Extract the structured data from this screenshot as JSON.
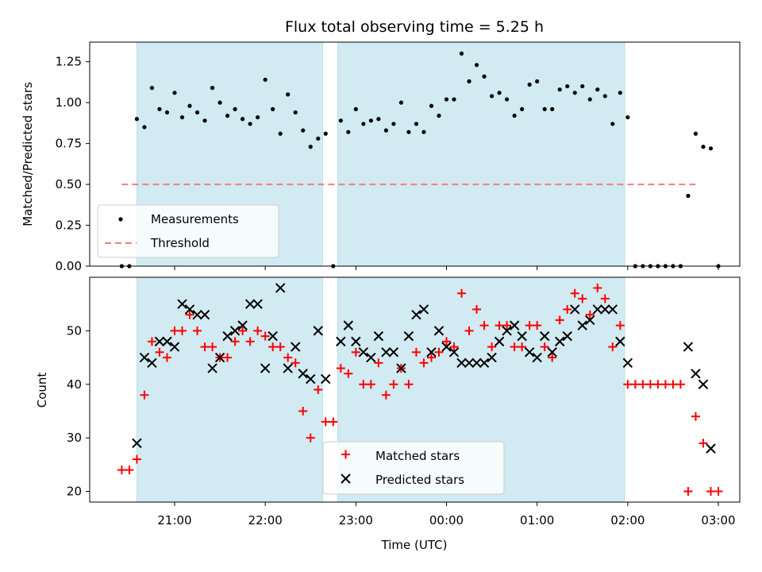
{
  "chart_data": [
    {
      "type": "scatter",
      "title": "Flux total observing time = 5.25 h",
      "xlabel": "",
      "ylabel": "Matched/Predicted stars",
      "ylim": [
        0,
        1.37
      ],
      "y_ticks": [
        "0.00",
        "0.25",
        "0.50",
        "0.75",
        "1.00",
        "1.25"
      ],
      "legend_position": "lower-left",
      "threshold": {
        "name": "Threshold",
        "value": 0.5,
        "x_range": [
          "20:25",
          "02:45"
        ],
        "color": "#f08080"
      },
      "series": [
        {
          "name": "Measurements",
          "color": "#000000",
          "points": [
            [
              "20:25",
              0.0
            ],
            [
              "20:30",
              0.0
            ],
            [
              "20:35",
              0.9
            ],
            [
              "20:40",
              0.85
            ],
            [
              "20:45",
              1.09
            ],
            [
              "20:50",
              0.96
            ],
            [
              "20:55",
              0.94
            ],
            [
              "21:00",
              1.06
            ],
            [
              "21:05",
              0.91
            ],
            [
              "21:10",
              0.98
            ],
            [
              "21:15",
              0.94
            ],
            [
              "21:20",
              0.89
            ],
            [
              "21:25",
              1.09
            ],
            [
              "21:30",
              1.0
            ],
            [
              "21:35",
              0.92
            ],
            [
              "21:40",
              0.96
            ],
            [
              "21:45",
              0.9
            ],
            [
              "21:50",
              0.87
            ],
            [
              "21:55",
              0.91
            ],
            [
              "22:00",
              1.14
            ],
            [
              "22:05",
              0.96
            ],
            [
              "22:10",
              0.81
            ],
            [
              "22:15",
              1.05
            ],
            [
              "22:20",
              0.94
            ],
            [
              "22:25",
              0.83
            ],
            [
              "22:30",
              0.73
            ],
            [
              "22:35",
              0.78
            ],
            [
              "22:40",
              0.81
            ],
            [
              "22:45",
              0.0
            ],
            [
              "22:50",
              0.89
            ],
            [
              "22:55",
              0.82
            ],
            [
              "23:00",
              0.96
            ],
            [
              "23:05",
              0.87
            ],
            [
              "23:10",
              0.89
            ],
            [
              "23:15",
              0.9
            ],
            [
              "23:20",
              0.83
            ],
            [
              "23:25",
              0.87
            ],
            [
              "23:30",
              1.0
            ],
            [
              "23:35",
              0.82
            ],
            [
              "23:40",
              0.87
            ],
            [
              "23:45",
              0.82
            ],
            [
              "23:50",
              0.98
            ],
            [
              "23:55",
              0.92
            ],
            [
              "00:00",
              1.02
            ],
            [
              "00:05",
              1.02
            ],
            [
              "00:10",
              1.3
            ],
            [
              "00:15",
              1.13
            ],
            [
              "00:20",
              1.23
            ],
            [
              "00:25",
              1.16
            ],
            [
              "00:30",
              1.04
            ],
            [
              "00:35",
              1.06
            ],
            [
              "00:40",
              1.02
            ],
            [
              "00:45",
              0.92
            ],
            [
              "00:50",
              0.96
            ],
            [
              "00:55",
              1.11
            ],
            [
              "01:00",
              1.13
            ],
            [
              "01:05",
              0.96
            ],
            [
              "01:10",
              0.96
            ],
            [
              "01:15",
              1.08
            ],
            [
              "01:20",
              1.1
            ],
            [
              "01:25",
              1.06
            ],
            [
              "01:30",
              1.1
            ],
            [
              "01:35",
              1.02
            ],
            [
              "01:40",
              1.08
            ],
            [
              "01:45",
              1.04
            ],
            [
              "01:50",
              0.87
            ],
            [
              "01:55",
              1.06
            ],
            [
              "02:00",
              0.91
            ],
            [
              "02:05",
              0.0
            ],
            [
              "02:10",
              0.0
            ],
            [
              "02:15",
              0.0
            ],
            [
              "02:20",
              0.0
            ],
            [
              "02:25",
              0.0
            ],
            [
              "02:30",
              0.0
            ],
            [
              "02:35",
              0.0
            ],
            [
              "02:40",
              0.43
            ],
            [
              "02:45",
              0.81
            ],
            [
              "02:50",
              0.73
            ],
            [
              "02:55",
              0.72
            ],
            [
              "03:00",
              0.0
            ]
          ]
        }
      ]
    },
    {
      "type": "scatter",
      "title": "",
      "xlabel": "Time (UTC)",
      "ylabel": "Count",
      "ylim": [
        18,
        60
      ],
      "y_ticks": [
        "20",
        "30",
        "40",
        "50"
      ],
      "x_ticks": [
        "21:00",
        "22:00",
        "23:00",
        "00:00",
        "01:00",
        "02:00",
        "03:00"
      ],
      "legend_position": "lower-center",
      "series": [
        {
          "name": "Matched stars",
          "marker": "+",
          "color": "#ff0000",
          "points": [
            [
              "20:25",
              24
            ],
            [
              "20:30",
              24
            ],
            [
              "20:35",
              26
            ],
            [
              "20:40",
              38
            ],
            [
              "20:45",
              48
            ],
            [
              "20:50",
              46
            ],
            [
              "20:55",
              45
            ],
            [
              "21:00",
              50
            ],
            [
              "21:05",
              50
            ],
            [
              "21:10",
              53
            ],
            [
              "21:15",
              50
            ],
            [
              "21:20",
              47
            ],
            [
              "21:25",
              47
            ],
            [
              "21:30",
              45
            ],
            [
              "21:35",
              45
            ],
            [
              "21:40",
              48
            ],
            [
              "21:45",
              50
            ],
            [
              "21:50",
              48
            ],
            [
              "21:55",
              50
            ],
            [
              "22:00",
              49
            ],
            [
              "22:05",
              47
            ],
            [
              "22:10",
              47
            ],
            [
              "22:15",
              45
            ],
            [
              "22:20",
              44
            ],
            [
              "22:25",
              35
            ],
            [
              "22:30",
              30
            ],
            [
              "22:35",
              39
            ],
            [
              "22:40",
              33
            ],
            [
              "22:45",
              33
            ],
            [
              "22:50",
              43
            ],
            [
              "22:55",
              42
            ],
            [
              "23:00",
              46
            ],
            [
              "23:05",
              40
            ],
            [
              "23:10",
              40
            ],
            [
              "23:15",
              44
            ],
            [
              "23:20",
              38
            ],
            [
              "23:25",
              40
            ],
            [
              "23:30",
              43
            ],
            [
              "23:35",
              40
            ],
            [
              "23:40",
              46
            ],
            [
              "23:45",
              44
            ],
            [
              "23:50",
              45
            ],
            [
              "23:55",
              46
            ],
            [
              "00:00",
              48
            ],
            [
              "00:05",
              47
            ],
            [
              "00:10",
              57
            ],
            [
              "00:15",
              50
            ],
            [
              "00:20",
              54
            ],
            [
              "00:25",
              51
            ],
            [
              "00:30",
              47
            ],
            [
              "00:35",
              51
            ],
            [
              "00:40",
              51
            ],
            [
              "00:45",
              47
            ],
            [
              "00:50",
              47
            ],
            [
              "00:55",
              51
            ],
            [
              "01:00",
              51
            ],
            [
              "01:05",
              47
            ],
            [
              "01:10",
              45
            ],
            [
              "01:15",
              52
            ],
            [
              "01:20",
              54
            ],
            [
              "01:25",
              57
            ],
            [
              "01:30",
              56
            ],
            [
              "01:35",
              53
            ],
            [
              "01:40",
              58
            ],
            [
              "01:45",
              56
            ],
            [
              "01:50",
              47
            ],
            [
              "01:55",
              51
            ],
            [
              "02:00",
              40
            ],
            [
              "02:05",
              40
            ],
            [
              "02:10",
              40
            ],
            [
              "02:15",
              40
            ],
            [
              "02:20",
              40
            ],
            [
              "02:25",
              40
            ],
            [
              "02:30",
              40
            ],
            [
              "02:35",
              40
            ],
            [
              "02:40",
              20
            ],
            [
              "02:45",
              34
            ],
            [
              "02:50",
              29
            ],
            [
              "02:55",
              20
            ],
            [
              "03:00",
              20
            ]
          ]
        },
        {
          "name": "Predicted stars",
          "marker": "x",
          "color": "#000000",
          "points": [
            [
              "20:35",
              29
            ],
            [
              "20:40",
              45
            ],
            [
              "20:45",
              44
            ],
            [
              "20:50",
              48
            ],
            [
              "20:55",
              48
            ],
            [
              "21:00",
              47
            ],
            [
              "21:05",
              55
            ],
            [
              "21:10",
              54
            ],
            [
              "21:15",
              53
            ],
            [
              "21:20",
              53
            ],
            [
              "21:25",
              43
            ],
            [
              "21:30",
              45
            ],
            [
              "21:35",
              49
            ],
            [
              "21:40",
              50
            ],
            [
              "21:45",
              51
            ],
            [
              "21:50",
              55
            ],
            [
              "21:55",
              55
            ],
            [
              "22:00",
              43
            ],
            [
              "22:05",
              49
            ],
            [
              "22:10",
              58
            ],
            [
              "22:15",
              43
            ],
            [
              "22:20",
              47
            ],
            [
              "22:25",
              42
            ],
            [
              "22:30",
              41
            ],
            [
              "22:35",
              50
            ],
            [
              "22:40",
              41
            ],
            [
              "22:50",
              48
            ],
            [
              "22:55",
              51
            ],
            [
              "23:00",
              48
            ],
            [
              "23:05",
              46
            ],
            [
              "23:10",
              45
            ],
            [
              "23:15",
              49
            ],
            [
              "23:20",
              46
            ],
            [
              "23:25",
              46
            ],
            [
              "23:30",
              43
            ],
            [
              "23:35",
              49
            ],
            [
              "23:40",
              53
            ],
            [
              "23:45",
              54
            ],
            [
              "23:50",
              46
            ],
            [
              "23:55",
              50
            ],
            [
              "00:00",
              47
            ],
            [
              "00:05",
              46
            ],
            [
              "00:10",
              44
            ],
            [
              "00:15",
              44
            ],
            [
              "00:20",
              44
            ],
            [
              "00:25",
              44
            ],
            [
              "00:30",
              45
            ],
            [
              "00:35",
              48
            ],
            [
              "00:40",
              50
            ],
            [
              "00:45",
              51
            ],
            [
              "00:50",
              49
            ],
            [
              "00:55",
              46
            ],
            [
              "01:00",
              45
            ],
            [
              "01:05",
              49
            ],
            [
              "01:10",
              46
            ],
            [
              "01:15",
              48
            ],
            [
              "01:20",
              49
            ],
            [
              "01:25",
              54
            ],
            [
              "01:30",
              51
            ],
            [
              "01:35",
              52
            ],
            [
              "01:40",
              54
            ],
            [
              "01:45",
              54
            ],
            [
              "01:50",
              54
            ],
            [
              "01:55",
              48
            ],
            [
              "02:00",
              44
            ],
            [
              "02:40",
              47
            ],
            [
              "02:45",
              42
            ],
            [
              "02:50",
              40
            ],
            [
              "02:55",
              28
            ]
          ]
        }
      ]
    }
  ],
  "observing_windows": [
    {
      "start": "20:35",
      "end": "22:38"
    },
    {
      "start": "22:48",
      "end": "01:58"
    }
  ],
  "colors": {
    "window": "#d2eaf1",
    "window_edge": "#bfe0ea",
    "threshold": "#f08080",
    "matched": "#ff0000",
    "predicted": "#000000"
  }
}
